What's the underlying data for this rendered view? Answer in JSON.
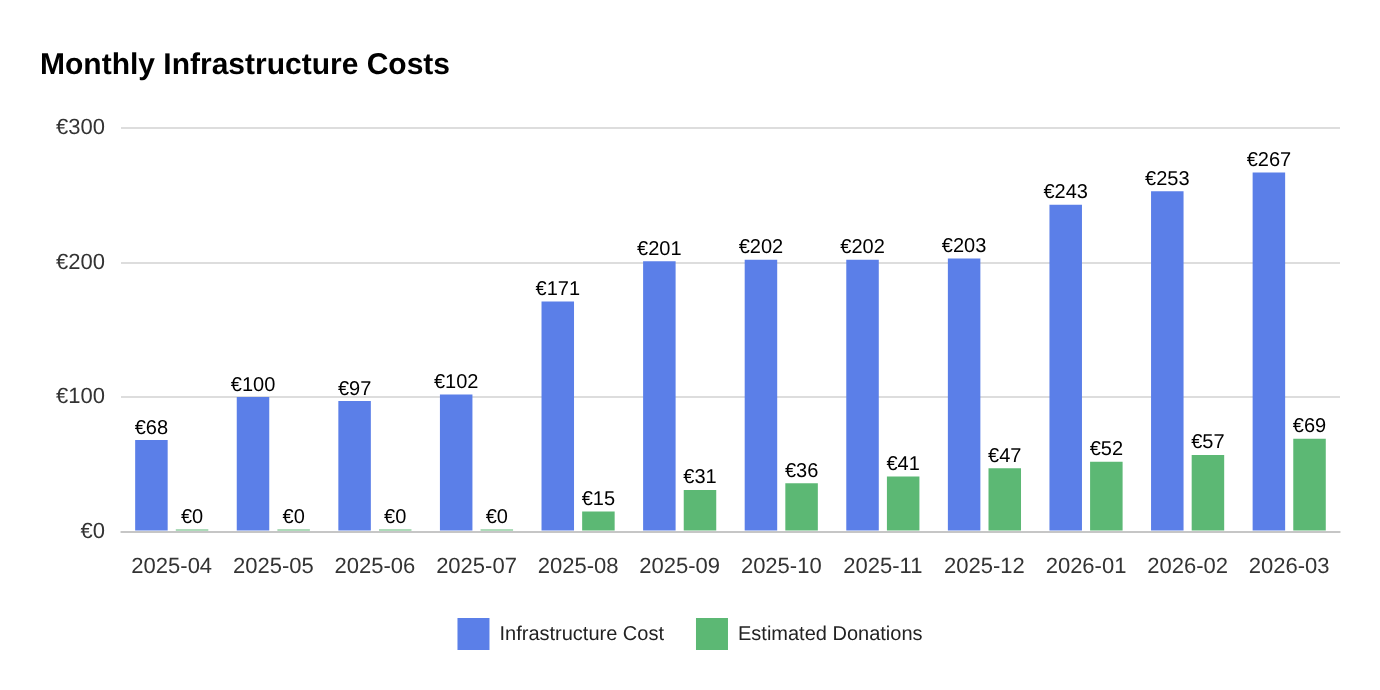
{
  "chart_data": {
    "type": "bar",
    "title": "Monthly Infrastructure Costs",
    "categories": [
      "2025-04",
      "2025-05",
      "2025-06",
      "2025-07",
      "2025-08",
      "2025-09",
      "2025-10",
      "2025-11",
      "2025-12",
      "2026-01",
      "2026-02",
      "2026-03"
    ],
    "series": [
      {
        "name": "Infrastructure Cost",
        "color": "#5b7fe8",
        "values": [
          68,
          100,
          97,
          102,
          171,
          201,
          202,
          202,
          203,
          243,
          253,
          267
        ],
        "value_labels": [
          "€68",
          "€100",
          "€97",
          "€102",
          "€171",
          "€201",
          "€202",
          "€202",
          "€203",
          "€243",
          "€253",
          "€267"
        ]
      },
      {
        "name": "Estimated Donations",
        "color": "#5cb874",
        "values": [
          0,
          0,
          0,
          0,
          15,
          31,
          36,
          41,
          47,
          52,
          57,
          69
        ],
        "value_labels": [
          "€0",
          "€0",
          "€0",
          "€0",
          "€15",
          "€31",
          "€36",
          "€41",
          "€47",
          "€52",
          "€57",
          "€69"
        ]
      }
    ],
    "ylim": [
      0,
      300
    ],
    "yticks": [
      {
        "value": 0,
        "label": "€0"
      },
      {
        "value": 100,
        "label": "€100"
      },
      {
        "value": 200,
        "label": "€200"
      },
      {
        "value": 300,
        "label": "€300"
      }
    ],
    "grid": "y",
    "legend": "bottom"
  }
}
